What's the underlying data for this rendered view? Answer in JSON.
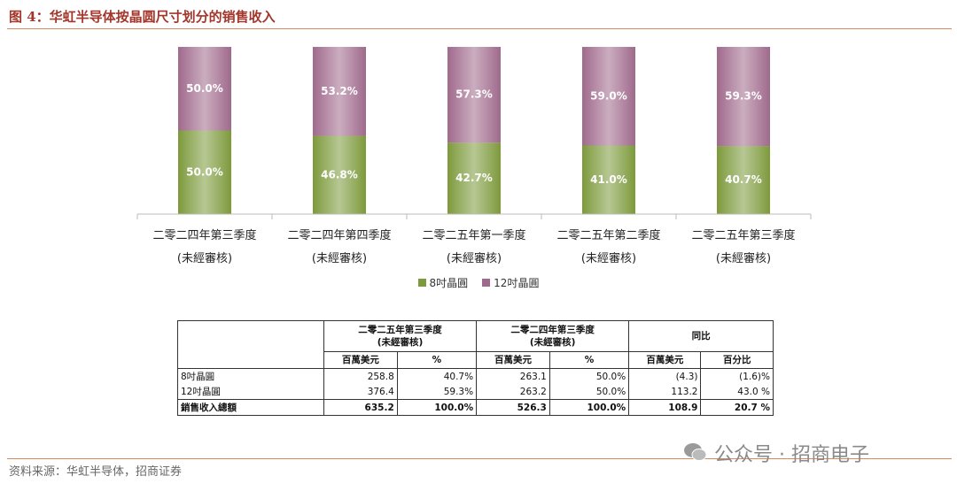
{
  "title": "图 4：华虹半导体按晶圆尺寸划分的销售收入",
  "chart_data": {
    "type": "stacked_bar",
    "categories": [
      "二零二四年第三季度\n(未經審核)",
      "二零二四年第四季度\n(未經審核)",
      "二零二五年第一季度\n(未經審核)",
      "二零二五年第二季度\n(未經審核)",
      "二零二五年第三季度\n(未經審核)"
    ],
    "series": [
      {
        "name": "8吋晶圓",
        "color": "#7d9a3c",
        "values": [
          50.0,
          46.8,
          42.7,
          41.0,
          40.7
        ],
        "value_labels": [
          "50.0%",
          "46.8%",
          "42.7%",
          "41.0%",
          "40.7%"
        ]
      },
      {
        "name": "12吋晶圓",
        "color": "#a06a8c",
        "values": [
          50.0,
          53.2,
          57.3,
          59.0,
          59.3
        ],
        "value_labels": [
          "50.0%",
          "53.2%",
          "57.3%",
          "59.0%",
          "59.3%"
        ]
      }
    ],
    "ylim": [
      0,
      100
    ],
    "legend": "bottom"
  },
  "table": {
    "column_groups": [
      "二零二五年第三季度\n(未經審核)",
      "二零二四年第三季度\n(未經審核)",
      "同比"
    ],
    "subheaders": [
      "百萬美元",
      "%",
      "百萬美元",
      "%",
      "百萬美元",
      "百分比"
    ],
    "rows": [
      [
        "8吋晶圓",
        "258.8",
        "40.7%",
        "263.1",
        "50.0%",
        "(4.3)",
        "(1.6)%"
      ],
      [
        "12吋晶圓",
        "376.4",
        "59.3%",
        "263.2",
        "50.0%",
        "113.2",
        "43.0 %"
      ],
      [
        "銷售收入總額",
        "635.2",
        "100.0%",
        "526.3",
        "100.0%",
        "108.9",
        "20.7 %"
      ]
    ]
  },
  "source": "资料来源：华虹半导体，招商证券",
  "watermark": "公众号 · 招商电子"
}
